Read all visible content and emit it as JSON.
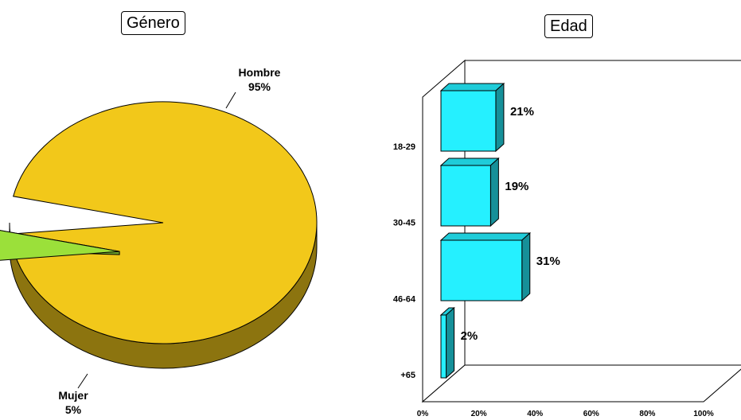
{
  "chart_data": [
    {
      "type": "pie",
      "title": "Género",
      "slices": [
        {
          "label": "Hombre",
          "value": 95,
          "value_label": "95%",
          "color": "#f2c81a"
        },
        {
          "label": "Mujer",
          "value": 5,
          "value_label": "5%",
          "color": "#9be03a"
        }
      ]
    },
    {
      "type": "bar",
      "orientation": "horizontal",
      "title": "Edad",
      "categories": [
        "18-29",
        "30-45",
        "46-64",
        "+65"
      ],
      "values": [
        21,
        19,
        31,
        2
      ],
      "value_labels": [
        "21%",
        "19%",
        "31%",
        "2%"
      ],
      "xlim": [
        0,
        100
      ],
      "xticks": [
        "0%",
        "20%",
        "40%",
        "60%",
        "80%",
        "100%"
      ],
      "xtick_values": [
        0,
        20,
        40,
        60,
        80,
        100
      ],
      "color": "#25f0ff",
      "grid": false
    }
  ]
}
